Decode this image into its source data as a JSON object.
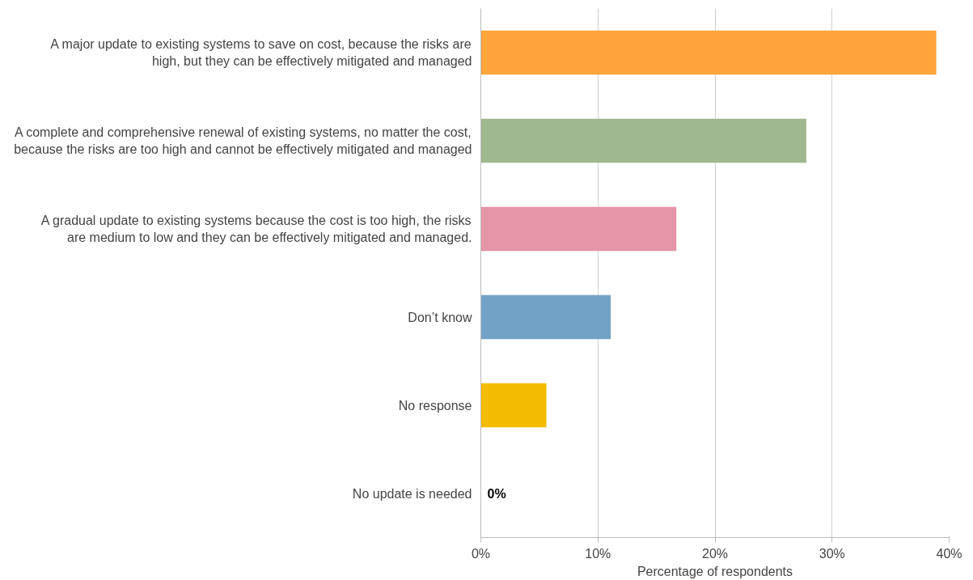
{
  "chart_data": {
    "type": "bar",
    "orientation": "horizontal",
    "xlabel": "Percentage of respondents",
    "categories": [
      "A major update to existing systems to save on cost, because the risks are high, but they can be effectively mitigated and managed",
      "A complete and comprehensive renewal of existing systems, no matter the cost, because the risks are too high and cannot be effectively mitigated and managed",
      "A gradual update to existing systems because the cost is too high, the risks are medium to low and they can be effectively mitigated and managed.",
      "Don’t know",
      "No response",
      "No update is needed"
    ],
    "values": [
      38.9,
      27.8,
      16.7,
      11.1,
      5.6,
      0
    ],
    "colors": [
      "#ffa53c",
      "#a0b890",
      "#e695a8",
      "#72a2c6",
      "#f4bc00",
      "#bbbbbb"
    ],
    "value_labels": [
      null,
      null,
      null,
      null,
      null,
      "0%"
    ],
    "xlim": [
      0,
      40
    ],
    "xticks": [
      {
        "value": 0,
        "label": "0%"
      },
      {
        "value": 10,
        "label": "10%"
      },
      {
        "value": 20,
        "label": "20%"
      },
      {
        "value": 30,
        "label": "30%"
      },
      {
        "value": 40,
        "label": "40%"
      }
    ],
    "grid": "x"
  }
}
